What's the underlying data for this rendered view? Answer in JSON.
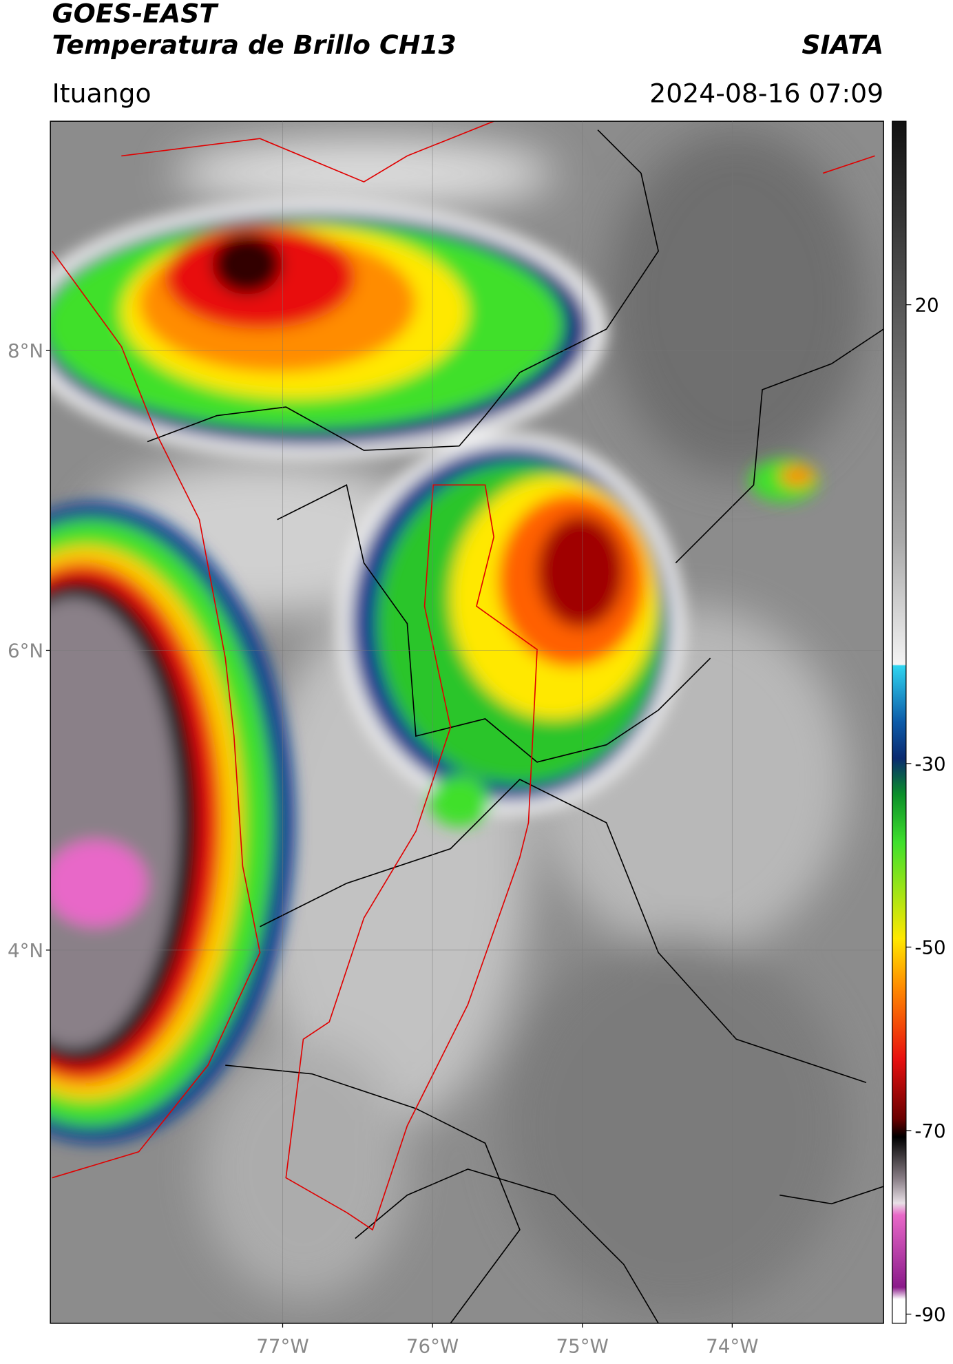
{
  "header": {
    "product": "GOES-EAST",
    "title": "Temperatura de Brillo CH13",
    "agency": "SIATA",
    "region": "Ituango",
    "datetime": "2024-08-16 07:09"
  },
  "map": {
    "lat_range": [
      1.51,
      9.53
    ],
    "lon_range": [
      -78.55,
      -72.99
    ],
    "lat_ticks": [
      {
        "value": 8,
        "label": "8°N"
      },
      {
        "value": 6,
        "label": "6°N"
      },
      {
        "value": 4,
        "label": "4°N"
      }
    ],
    "lon_ticks": [
      {
        "value": -77,
        "label": "77°W"
      },
      {
        "value": -76,
        "label": "76°W"
      },
      {
        "value": -75,
        "label": "75°W"
      },
      {
        "value": -74,
        "label": "74°W"
      }
    ]
  },
  "colorbar": {
    "range": [
      -91,
      40
    ],
    "ticks": [
      20,
      -30,
      -50,
      -70,
      -90
    ]
  }
}
